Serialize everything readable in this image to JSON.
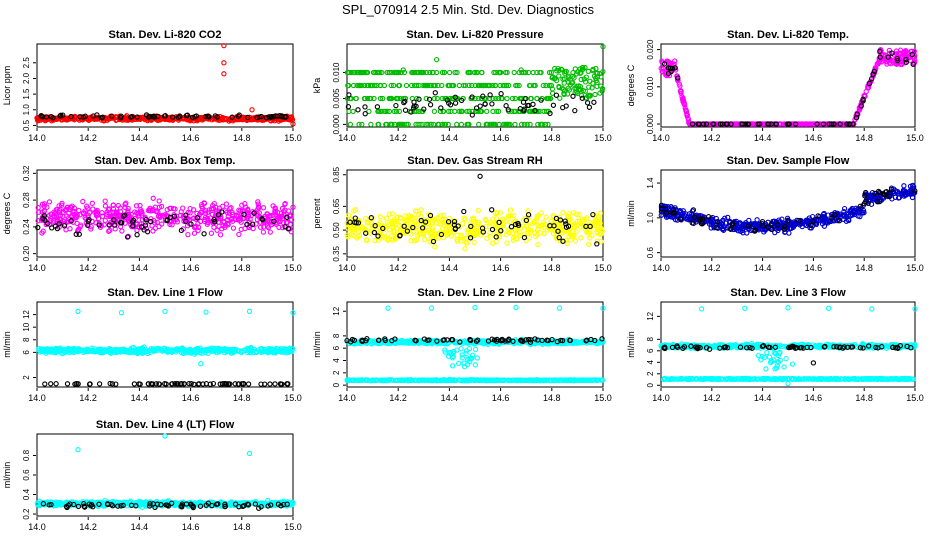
{
  "title": "SPL_070914  2.5 Min. Std. Dev. Diagnostics",
  "chart_data": [
    {
      "type": "scatter",
      "title": "Stan. Dev. Li-820 CO2",
      "ylabel": "Licor ppm",
      "xlim": [
        14.0,
        15.0
      ],
      "ylim": [
        0.45,
        3.1
      ],
      "xticks": [
        "14.0",
        "14.2",
        "14.4",
        "14.6",
        "14.8",
        "15.0"
      ],
      "yticks": [
        "0.5",
        "1.0",
        "1.5",
        "2.0",
        "2.5"
      ],
      "series": [
        {
          "color": "#ff0000",
          "model": {
            "kind": "band",
            "center": 0.72,
            "spread": 0.07,
            "n": 480
          },
          "outliers": [
            [
              14.73,
              3.05
            ],
            [
              14.73,
              2.5
            ],
            [
              14.73,
              2.15
            ],
            [
              14.84,
              1.0
            ],
            [
              15.0,
              0.55
            ]
          ]
        },
        {
          "color": "#000000",
          "model": {
            "kind": "band",
            "center": 0.78,
            "spread": 0.05,
            "n": 70
          }
        }
      ]
    },
    {
      "type": "scatter",
      "title": "Stan. Dev. Li-820 Pressure",
      "ylabel": "kPa",
      "xlim": [
        14.0,
        15.0
      ],
      "ylim": [
        -0.0005,
        0.0155
      ],
      "xticks": [
        "14.0",
        "14.2",
        "14.4",
        "14.6",
        "14.8",
        "15.0"
      ],
      "yticks": [
        "0.000",
        "0.005",
        "0.010"
      ],
      "series": [
        {
          "color": "#00bb00",
          "model": {
            "kind": "quant",
            "levels": [
              0.0,
              0.0025,
              0.005,
              0.0075,
              0.01
            ],
            "n": 520
          },
          "outliers": [
            [
              14.22,
              0.0105
            ],
            [
              14.35,
              0.0125
            ],
            [
              14.68,
              0.0105
            ],
            [
              15.0,
              0.015
            ]
          ]
        },
        {
          "color": "#000000",
          "model": {
            "kind": "band",
            "center": 0.004,
            "spread": 0.002,
            "n": 60
          }
        }
      ]
    },
    {
      "type": "scatter",
      "title": "Stan. Dev. Li-820 Temp.",
      "ylabel": "degrees C",
      "xlim": [
        14.0,
        15.0
      ],
      "ylim": [
        -0.0008,
        0.0215
      ],
      "xticks": [
        "14.0",
        "14.2",
        "14.4",
        "14.6",
        "14.8",
        "15.0"
      ],
      "yticks": [
        "0.000",
        "0.010",
        "0.020"
      ],
      "series": [
        {
          "color": "#ff00ff",
          "model": {
            "kind": "vshape",
            "n": 560
          }
        },
        {
          "color": "#000000",
          "model": {
            "kind": "vshape",
            "n": 70
          }
        }
      ]
    },
    {
      "type": "scatter",
      "title": "Stan. Dev. Amb. Box Temp.",
      "ylabel": "degrees C",
      "xlim": [
        14.0,
        15.0
      ],
      "ylim": [
        0.195,
        0.325
      ],
      "xticks": [
        "14.0",
        "14.2",
        "14.4",
        "14.6",
        "14.8",
        "15.0"
      ],
      "yticks": [
        "0.20",
        "0.24",
        "0.28",
        "0.32"
      ],
      "series": [
        {
          "color": "#ff00ff",
          "model": {
            "kind": "band",
            "center": 0.255,
            "spread": 0.022,
            "n": 520
          }
        },
        {
          "color": "#000000",
          "model": {
            "kind": "band",
            "center": 0.245,
            "spread": 0.02,
            "n": 60
          }
        }
      ]
    },
    {
      "type": "scatter",
      "title": "Stan. Dev. Gas Stream RH",
      "ylabel": "percent",
      "xlim": [
        14.0,
        15.0
      ],
      "ylim": [
        0.33,
        0.88
      ],
      "xticks": [
        "14.0",
        "14.2",
        "14.4",
        "14.6",
        "14.8",
        "15.0"
      ],
      "yticks": [
        "0.35",
        "0.50",
        "0.65",
        "0.85"
      ],
      "series": [
        {
          "color": "#ffff00",
          "model": {
            "kind": "band",
            "center": 0.52,
            "spread": 0.11,
            "n": 520
          }
        },
        {
          "color": "#000000",
          "model": {
            "kind": "band",
            "center": 0.52,
            "spread": 0.1,
            "n": 60
          },
          "outliers": [
            [
              14.52,
              0.84
            ]
          ]
        }
      ]
    },
    {
      "type": "scatter",
      "title": "Stan. Dev. Sample Flow",
      "ylabel": "ml/min",
      "xlim": [
        14.0,
        15.0
      ],
      "ylim": [
        0.55,
        1.55
      ],
      "xticks": [
        "14.0",
        "14.2",
        "14.4",
        "14.6",
        "14.8",
        "15.0"
      ],
      "yticks": [
        "0.6",
        "1.0",
        "1.4"
      ],
      "series": [
        {
          "color": "#0000cc",
          "model": {
            "kind": "wave",
            "n": 560
          }
        },
        {
          "color": "#000000",
          "model": {
            "kind": "wave",
            "n": 60
          }
        }
      ]
    },
    {
      "type": "scatter",
      "title": "Stan. Dev. Line 1 Flow",
      "ylabel": "ml/min",
      "xlim": [
        14.0,
        15.0
      ],
      "ylim": [
        0.5,
        14.0
      ],
      "xticks": [
        "14.0",
        "14.2",
        "14.4",
        "14.6",
        "14.8",
        "15.0"
      ],
      "yticks": [
        "2",
        "6",
        "8",
        "10",
        "12"
      ],
      "series": [
        {
          "color": "#00ffff",
          "model": {
            "kind": "band",
            "center": 6.3,
            "spread": 0.45,
            "n": 520
          },
          "outliers": [
            [
              14.16,
              12.5
            ],
            [
              14.33,
              12.3
            ],
            [
              14.5,
              12.5
            ],
            [
              14.66,
              12.4
            ],
            [
              14.83,
              12.5
            ],
            [
              15.0,
              12.3
            ],
            [
              14.64,
              4.2
            ]
          ]
        },
        {
          "color": "#000000",
          "model": {
            "kind": "band",
            "center": 1.0,
            "spread": 0.05,
            "n": 70
          }
        }
      ]
    },
    {
      "type": "scatter",
      "title": "Stan. Dev. Line 2 Flow",
      "ylabel": "ml/min",
      "xlim": [
        14.0,
        15.0
      ],
      "ylim": [
        -0.3,
        13.5
      ],
      "xticks": [
        "14.0",
        "14.2",
        "14.4",
        "14.6",
        "14.8",
        "15.0"
      ],
      "yticks": [
        "0",
        "2",
        "4",
        "6",
        "8",
        "12"
      ],
      "series": [
        {
          "color": "#00ffff",
          "model": {
            "kind": "dip",
            "base": 7.0,
            "spread": 0.35,
            "n": 520
          },
          "extra": {
            "center": 0.8,
            "spread": 0.08,
            "n": 420
          },
          "outliers": [
            [
              14.16,
              12.5
            ],
            [
              14.33,
              12.5
            ],
            [
              14.5,
              12.6
            ],
            [
              14.66,
              12.6
            ],
            [
              14.83,
              12.5
            ],
            [
              15.0,
              12.5
            ]
          ]
        },
        {
          "color": "#000000",
          "model": {
            "kind": "band",
            "center": 7.3,
            "spread": 0.3,
            "n": 70
          }
        }
      ]
    },
    {
      "type": "scatter",
      "title": "Stan. Dev. Line 3 Flow",
      "ylabel": "ml/min",
      "xlim": [
        14.0,
        15.0
      ],
      "ylim": [
        -0.3,
        14.5
      ],
      "xticks": [
        "14.0",
        "14.2",
        "14.4",
        "14.6",
        "14.8",
        "15.0"
      ],
      "yticks": [
        "0",
        "2",
        "4",
        "6",
        "8",
        "12"
      ],
      "series": [
        {
          "color": "#00ffff",
          "model": {
            "kind": "dip",
            "base": 6.8,
            "spread": 0.35,
            "n": 520
          },
          "extra": {
            "center": 1.1,
            "spread": 0.1,
            "n": 420
          },
          "outliers": [
            [
              14.16,
              13.3
            ],
            [
              14.33,
              13.4
            ],
            [
              14.5,
              13.5
            ],
            [
              14.66,
              13.4
            ],
            [
              14.83,
              13.3
            ],
            [
              15.0,
              13.3
            ],
            [
              14.5,
              0.3
            ]
          ]
        },
        {
          "color": "#000000",
          "model": {
            "kind": "band",
            "center": 6.6,
            "spread": 0.3,
            "n": 70
          },
          "outliers": [
            [
              14.6,
              3.9
            ]
          ]
        }
      ]
    },
    {
      "type": "scatter",
      "title": "Stan. Dev. Line 4 (LT) Flow",
      "ylabel": "ml/min",
      "xlim": [
        14.0,
        15.0
      ],
      "ylim": [
        0.18,
        1.02
      ],
      "xticks": [
        "14.0",
        "14.2",
        "14.4",
        "14.6",
        "14.8",
        "15.0"
      ],
      "yticks": [
        "0.2",
        "0.4",
        "0.6",
        "0.8"
      ],
      "series": [
        {
          "color": "#00ffff",
          "model": {
            "kind": "band",
            "center": 0.305,
            "spread": 0.025,
            "n": 520
          },
          "outliers": [
            [
              14.16,
              0.86
            ],
            [
              14.5,
              1.0
            ],
            [
              14.83,
              0.82
            ]
          ]
        },
        {
          "color": "#000000",
          "model": {
            "kind": "band",
            "center": 0.29,
            "spread": 0.025,
            "n": 70
          }
        }
      ]
    }
  ]
}
